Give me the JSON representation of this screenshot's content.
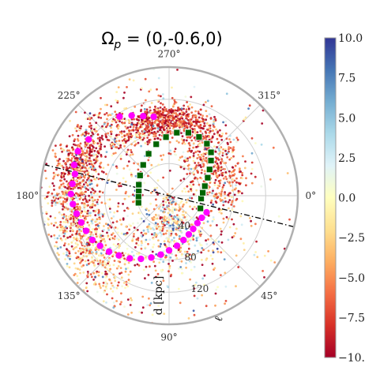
{
  "chart_data": {
    "type": "scatter",
    "projection": "polar",
    "title": "Ω_p = (0,-0.6,0)",
    "title_base": "Ω",
    "title_sub": "p",
    "title_rest": " = (0,-0.6,0)",
    "angular_ticks": [
      "0°",
      "45°",
      "90°",
      "135°",
      "180°",
      "225°",
      "270°",
      "315°"
    ],
    "angular_tick_degrees": [
      0,
      45,
      90,
      135,
      180,
      225,
      270,
      315
    ],
    "radial_ticks": [
      40,
      80,
      120
    ],
    "radial_lim": [
      0,
      160
    ],
    "radial_label": "d [kpc]",
    "theta_label": "ℓ",
    "grid": true,
    "colorbar": {
      "ticks": [
        "10.0",
        "7.5",
        "5.0",
        "2.5",
        "0.0",
        "−2.5",
        "−5.0",
        "−7.5",
        "−10."
      ],
      "values": [
        10,
        7.5,
        5,
        2.5,
        0,
        -2.5,
        -5,
        -7.5,
        -10
      ],
      "range": [
        -10,
        10
      ],
      "colormap": "RdYlBu"
    },
    "great_circle_line": {
      "style": "dash-dot",
      "color": "#000000",
      "angles_deg": [
        14,
        194
      ]
    },
    "series": [
      {
        "marker": "circle",
        "color": "#ff00ff",
        "points": [
          {
            "theta": 198,
            "r": 124
          },
          {
            "theta": 193,
            "r": 120
          },
          {
            "theta": 187,
            "r": 121
          },
          {
            "theta": 181,
            "r": 122
          },
          {
            "theta": 175,
            "r": 120
          },
          {
            "theta": 169,
            "r": 117
          },
          {
            "theta": 163,
            "r": 114
          },
          {
            "theta": 157,
            "r": 112
          },
          {
            "theta": 150,
            "r": 110
          },
          {
            "theta": 144,
            "r": 106
          },
          {
            "theta": 137,
            "r": 102
          },
          {
            "theta": 130,
            "r": 97
          },
          {
            "theta": 122,
            "r": 92
          },
          {
            "theta": 114,
            "r": 86
          },
          {
            "theta": 106,
            "r": 80
          },
          {
            "theta": 98,
            "r": 74
          },
          {
            "theta": 90,
            "r": 68
          },
          {
            "theta": 81,
            "r": 63
          },
          {
            "theta": 72,
            "r": 58
          },
          {
            "theta": 63,
            "r": 54
          },
          {
            "theta": 54,
            "r": 51
          },
          {
            "theta": 44,
            "r": 49
          },
          {
            "theta": 34,
            "r": 49
          },
          {
            "theta": 24,
            "r": 51
          },
          {
            "theta": 238,
            "r": 116
          },
          {
            "theta": 245,
            "r": 110
          },
          {
            "theta": 252,
            "r": 104
          },
          {
            "theta": 259,
            "r": 100
          },
          {
            "theta": 215,
            "r": 122
          },
          {
            "theta": 206,
            "r": 126
          }
        ]
      },
      {
        "marker": "square",
        "color": "#006400",
        "points": [
          {
            "theta": 5,
            "r": 40
          },
          {
            "theta": 355,
            "r": 42
          },
          {
            "theta": 345,
            "r": 46
          },
          {
            "theta": 335,
            "r": 53
          },
          {
            "theta": 327,
            "r": 60
          },
          {
            "theta": 320,
            "r": 68
          },
          {
            "theta": 314,
            "r": 75
          },
          {
            "theta": 306,
            "r": 80
          },
          {
            "theta": 297,
            "r": 82
          },
          {
            "theta": 287,
            "r": 82
          },
          {
            "theta": 277,
            "r": 79
          },
          {
            "theta": 267,
            "r": 73
          },
          {
            "theta": 256,
            "r": 66
          },
          {
            "theta": 244,
            "r": 58
          },
          {
            "theta": 230,
            "r": 50
          },
          {
            "theta": 215,
            "r": 44
          },
          {
            "theta": 200,
            "r": 40
          },
          {
            "theta": 188,
            "r": 38
          },
          {
            "theta": 178,
            "r": 38
          },
          {
            "theta": 167,
            "r": 39
          },
          {
            "theta": 22,
            "r": 42
          }
        ]
      }
    ],
    "scatter_clouds": [
      {
        "theta": 268,
        "r": 95,
        "sigma_theta": 20,
        "sigma_r": 10,
        "count": 700,
        "value_mean": -8,
        "value_sd": 2.5
      },
      {
        "theta": 195,
        "r": 120,
        "sigma_theta": 20,
        "sigma_r": 14,
        "count": 650,
        "value_mean": -7.5,
        "value_sd": 3
      },
      {
        "theta": 150,
        "r": 120,
        "sigma_theta": 18,
        "sigma_r": 20,
        "count": 550,
        "value_mean": -3,
        "value_sd": 4
      },
      {
        "theta": 330,
        "r": 70,
        "sigma_theta": 25,
        "sigma_r": 18,
        "count": 400,
        "value_mean": -7,
        "value_sd": 3
      },
      {
        "theta": 80,
        "r": 50,
        "sigma_theta": 35,
        "sigma_r": 25,
        "count": 450,
        "value_mean": -1,
        "value_sd": 5
      },
      {
        "theta": 180,
        "r": 100,
        "sigma_theta": 90,
        "sigma_r": 45,
        "count": 700,
        "value_mean": -4,
        "value_sd": 5
      }
    ]
  }
}
